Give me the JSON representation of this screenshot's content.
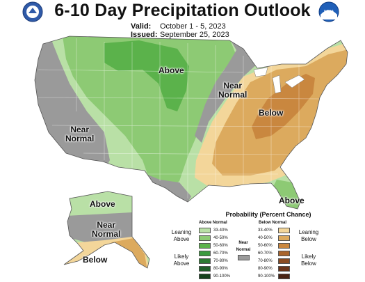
{
  "header": {
    "title": "6-10 Day Precipitation Outlook",
    "valid_label": "Valid:",
    "valid_value": "October 1 - 5, 2023",
    "issued_label": "Issued:",
    "issued_value": "September 25, 2023"
  },
  "logos": {
    "left_icon": "doc-seal-icon",
    "right_icon": "noaa-logo-icon",
    "right_text": "NOAA"
  },
  "map_labels": {
    "above_north": "Above",
    "near_normal_west_1": "Near",
    "near_normal_west_2": "Normal",
    "near_normal_midwest_1": "Near",
    "near_normal_midwest_2": "Normal",
    "below_east": "Below",
    "above_florida": "Above",
    "alaska_above": "Above",
    "alaska_near_1": "Near",
    "alaska_near_2": "Normal",
    "alaska_below": "Below"
  },
  "legend": {
    "title": "Probability (Percent Chance)",
    "above_header": "Above Normal",
    "below_header": "Below Normal",
    "near_label_1": "Near",
    "near_label_2": "Normal",
    "above_items": [
      {
        "range": "33-40%",
        "color": "#b9e0a6"
      },
      {
        "range": "40-50%",
        "color": "#8dca74"
      },
      {
        "range": "50-60%",
        "color": "#5bb24b"
      },
      {
        "range": "60-70%",
        "color": "#3a9a3e"
      },
      {
        "range": "70-80%",
        "color": "#2c7a32"
      },
      {
        "range": "80-90%",
        "color": "#1f5e28"
      },
      {
        "range": "90-100%",
        "color": "#14421c"
      }
    ],
    "below_items": [
      {
        "range": "33-40%",
        "color": "#f3d69a"
      },
      {
        "range": "40-50%",
        "color": "#dcaa5e"
      },
      {
        "range": "50-60%",
        "color": "#c9873f"
      },
      {
        "range": "60-70%",
        "color": "#a9652d"
      },
      {
        "range": "70-80%",
        "color": "#8a4b22"
      },
      {
        "range": "80-90%",
        "color": "#6a3419"
      },
      {
        "range": "90-100%",
        "color": "#4a2414"
      }
    ],
    "near_color": "#9a9a9a",
    "leaning_above_1": "Leaning",
    "leaning_above_2": "Above",
    "likely_above_1": "Likely",
    "likely_above_2": "Above",
    "leaning_below_1": "Leaning",
    "leaning_below_2": "Below",
    "likely_below_1": "Likely",
    "likely_below_2": "Below"
  }
}
